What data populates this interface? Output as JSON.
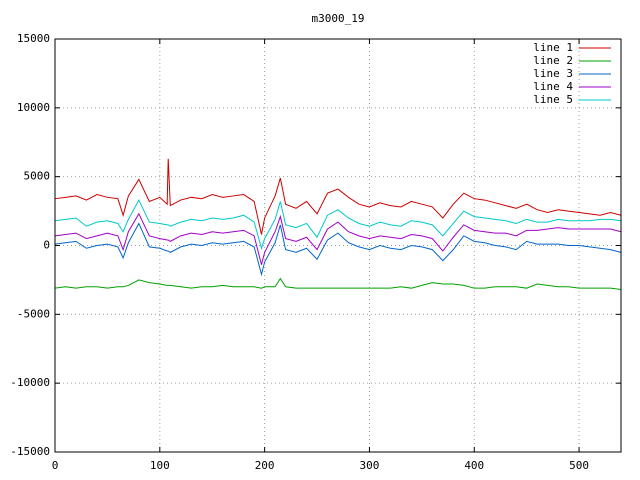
{
  "chart_data": {
    "type": "line",
    "title": "m3000_19",
    "x": [
      0,
      10,
      20,
      30,
      40,
      50,
      60,
      65,
      70,
      80,
      90,
      100,
      107,
      108,
      110,
      120,
      130,
      140,
      150,
      160,
      170,
      180,
      190,
      197,
      200,
      210,
      215,
      220,
      230,
      240,
      250,
      260,
      270,
      280,
      290,
      300,
      310,
      320,
      330,
      340,
      350,
      360,
      370,
      380,
      390,
      400,
      410,
      420,
      430,
      440,
      450,
      460,
      470,
      480,
      490,
      500,
      510,
      520,
      530,
      540
    ],
    "series": [
      {
        "name": "line 1",
        "color": "#cc0000",
        "values": [
          3400,
          3500,
          3600,
          3300,
          3700,
          3500,
          3400,
          2200,
          3600,
          4800,
          3200,
          3500,
          3000,
          6300,
          2900,
          3300,
          3500,
          3400,
          3700,
          3500,
          3600,
          3700,
          3200,
          800,
          2000,
          3600,
          4900,
          3000,
          2700,
          3200,
          2300,
          3800,
          4100,
          3500,
          3000,
          2800,
          3100,
          2900,
          2800,
          3200,
          3000,
          2800,
          2000,
          3000,
          3800,
          3400,
          3300,
          3100,
          2900,
          2700,
          3000,
          2600,
          2400,
          2600,
          2500,
          2400,
          2300,
          2200,
          2400,
          2200
        ]
      },
      {
        "name": "line 2",
        "color": "#00a000",
        "values": [
          -3100,
          -3000,
          -3100,
          -3000,
          -3000,
          -3100,
          -3000,
          -3000,
          -2900,
          -2500,
          -2700,
          -2800,
          -2900,
          -2900,
          -2900,
          -3000,
          -3100,
          -3000,
          -3000,
          -2900,
          -3000,
          -3000,
          -3000,
          -3100,
          -3000,
          -3000,
          -2400,
          -3000,
          -3100,
          -3100,
          -3100,
          -3100,
          -3100,
          -3100,
          -3100,
          -3100,
          -3100,
          -3100,
          -3000,
          -3100,
          -2900,
          -2700,
          -2800,
          -2800,
          -2900,
          -3100,
          -3100,
          -3000,
          -3000,
          -3000,
          -3100,
          -2800,
          -2900,
          -3000,
          -3000,
          -3100,
          -3100,
          -3100,
          -3100,
          -3200
        ]
      },
      {
        "name": "line 3",
        "color": "#0066cc",
        "values": [
          100,
          200,
          300,
          -200,
          0,
          100,
          -100,
          -900,
          200,
          1600,
          -100,
          -200,
          -400,
          -400,
          -500,
          -100,
          100,
          0,
          200,
          100,
          200,
          300,
          -100,
          -2100,
          -1200,
          200,
          1500,
          -300,
          -500,
          -200,
          -1000,
          400,
          900,
          200,
          -100,
          -300,
          0,
          -200,
          -300,
          0,
          -100,
          -300,
          -1100,
          -300,
          700,
          300,
          200,
          0,
          -100,
          -300,
          300,
          100,
          100,
          100,
          0,
          0,
          -100,
          -200,
          -300,
          -500
        ]
      },
      {
        "name": "line 4",
        "color": "#a000c8",
        "values": [
          700,
          800,
          900,
          500,
          700,
          900,
          700,
          -300,
          1000,
          2300,
          700,
          500,
          400,
          400,
          300,
          700,
          900,
          800,
          1000,
          900,
          1000,
          1100,
          700,
          -1400,
          -500,
          1000,
          2100,
          500,
          300,
          600,
          -300,
          1200,
          1700,
          1000,
          700,
          500,
          700,
          600,
          500,
          800,
          700,
          500,
          -400,
          600,
          1500,
          1100,
          1000,
          900,
          900,
          700,
          1100,
          1100,
          1200,
          1300,
          1200,
          1200,
          1200,
          1200,
          1200,
          1000
        ]
      },
      {
        "name": "line 5",
        "color": "#00c8c8",
        "values": [
          1800,
          1900,
          2000,
          1400,
          1700,
          1800,
          1600,
          1000,
          1900,
          3300,
          1700,
          1600,
          1500,
          1500,
          1400,
          1700,
          1900,
          1800,
          2000,
          1900,
          2000,
          2200,
          1700,
          -200,
          500,
          1900,
          3200,
          1500,
          1300,
          1600,
          600,
          2200,
          2600,
          2000,
          1600,
          1400,
          1700,
          1500,
          1400,
          1800,
          1700,
          1500,
          700,
          1600,
          2500,
          2100,
          2000,
          1900,
          1800,
          1600,
          1900,
          1700,
          1700,
          1900,
          1800,
          1800,
          1800,
          1900,
          1900,
          1800
        ]
      }
    ],
    "xlim": [
      0,
      540
    ],
    "xticks": [
      0,
      100,
      200,
      300,
      400,
      500
    ],
    "ylim": [
      -15000,
      15000
    ],
    "yticks": [
      -15000,
      -10000,
      -5000,
      0,
      5000,
      10000,
      15000
    ],
    "grid": true,
    "legend": "top-right"
  }
}
